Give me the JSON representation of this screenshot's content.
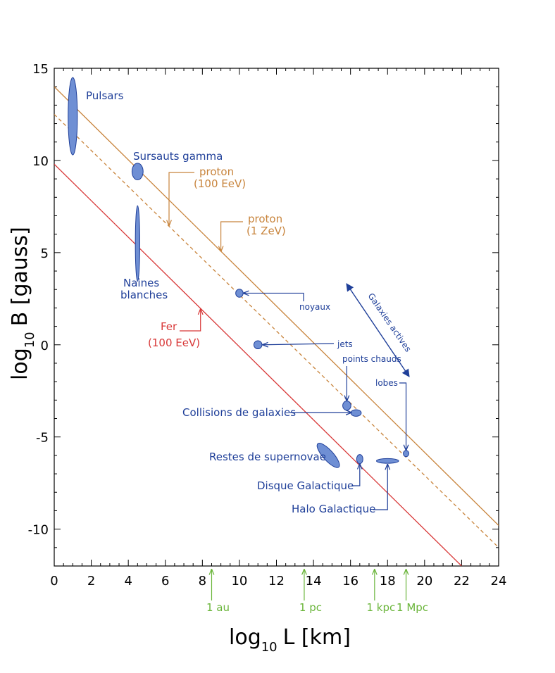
{
  "chart_data": {
    "type": "line",
    "xlabel": "log",
    "xlabel_sub": "10",
    "xlabel_rest": "L [km]",
    "ylabel": "log",
    "ylabel_sub": "10",
    "ylabel_rest": "B [gauss]",
    "xlim": [
      0,
      24
    ],
    "ylim": [
      -12,
      15
    ],
    "xticks": [
      0,
      2,
      4,
      6,
      8,
      10,
      12,
      14,
      16,
      18,
      20,
      22,
      24
    ],
    "yticks": [
      -10,
      -5,
      0,
      5,
      10,
      15
    ],
    "xtick_labels": [
      "0",
      "2",
      "4",
      "6",
      "8",
      "10",
      "12",
      "14",
      "16",
      "18",
      "20",
      "22",
      "24"
    ],
    "ytick_labels": [
      "-10",
      "-5",
      "0",
      "5",
      "10",
      "15"
    ],
    "grid": false,
    "colors": {
      "proton": "#c8843c",
      "iron": "#d83838",
      "objects": "#1f3f99",
      "object_fill": "#6f8fd4",
      "scale": "#6ab53a"
    },
    "series": [
      {
        "label": "proton\n(1 ZeV)",
        "line1": "proton",
        "line2": "(1 ZeV)",
        "style": "solid",
        "color": "#c8843c",
        "x": [
          0,
          24
        ],
        "y": [
          14.0,
          -9.8
        ],
        "pointer": {
          "x": 9.0,
          "y": 5.0
        }
      },
      {
        "label": "proton\n(100 EeV)",
        "line1": "proton",
        "line2": "(100 EeV)",
        "style": "dashed",
        "color": "#c8843c",
        "x": [
          0,
          24
        ],
        "y": [
          12.5,
          -11.0
        ],
        "pointer": {
          "x": 6.2,
          "y": 6.4
        }
      },
      {
        "label": "Fer\n(100 EeV)",
        "line1": "Fer",
        "line2": "(100 EeV)",
        "style": "solid",
        "color": "#d83838",
        "x": [
          0,
          22
        ],
        "y": [
          9.8,
          -12.0
        ],
        "pointer": {
          "x": 7.9,
          "y": 2.0
        }
      }
    ],
    "objects": [
      {
        "name": "Pulsars",
        "x": 1.0,
        "y": 12.4,
        "rx": 0.25,
        "ry": 2.1,
        "rot": 0
      },
      {
        "name": "Sursauts gamma",
        "x": 4.5,
        "y": 9.4,
        "rx": 0.3,
        "ry": 0.45,
        "rot": 0
      },
      {
        "name": "Naines\nblanches",
        "x": 4.5,
        "y": 5.5,
        "rx": 0.12,
        "ry": 2.05,
        "rot": 0
      },
      {
        "name": "noyaux",
        "x": 10.0,
        "y": 2.8,
        "rx": 0.2,
        "ry": 0.22,
        "rot": 0
      },
      {
        "name": "jets",
        "x": 11.0,
        "y": 0.0,
        "rx": 0.22,
        "ry": 0.22,
        "rot": 0
      },
      {
        "name": "points chauds",
        "x": 15.8,
        "y": -3.3,
        "rx": 0.22,
        "ry": 0.25,
        "rot": 0
      },
      {
        "name": "Collisions de galaxies",
        "x": 16.3,
        "y": -3.7,
        "rx": 0.28,
        "ry": 0.18,
        "rot": 0
      },
      {
        "name": "lobes",
        "x": 19.0,
        "y": -5.9,
        "rx": 0.15,
        "ry": 0.17,
        "rot": 0
      },
      {
        "name": "Restes de supernovae",
        "x": 14.8,
        "y": -6.0,
        "rx": 0.85,
        "ry": 0.28,
        "rot": 48
      },
      {
        "name": "Disque Galactique",
        "x": 16.5,
        "y": -6.2,
        "rx": 0.17,
        "ry": 0.25,
        "rot": 0
      },
      {
        "name": "Halo Galactique",
        "x": 18.0,
        "y": -6.3,
        "rx": 0.6,
        "ry": 0.13,
        "rot": 0
      }
    ],
    "annotations": {
      "pulsars": "Pulsars",
      "sursauts": "Sursauts gamma",
      "naines_1": "Naines",
      "naines_2": "blanches",
      "noyaux": "noyaux",
      "jets": "jets",
      "points_chauds": "points chauds",
      "collisions": "Collisions de galaxies",
      "lobes": "lobes",
      "restes": "Restes de supernovae",
      "disque": "Disque Galactique",
      "halo": "Halo Galactique",
      "galaxies_actives": "Galaxies actives"
    },
    "scale_markers": [
      {
        "label": "1 au",
        "x": 8.5
      },
      {
        "label": "1 pc",
        "x": 13.5
      },
      {
        "label": "1 kpc",
        "x": 17.3
      },
      {
        "label": "1 Mpc",
        "x": 19.0
      }
    ]
  }
}
